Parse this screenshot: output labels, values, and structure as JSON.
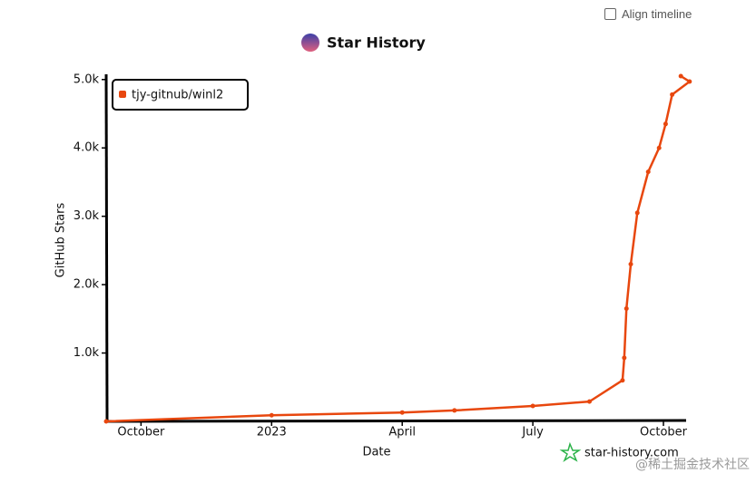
{
  "ui": {
    "align_timeline": "Align timeline"
  },
  "chart_data": {
    "type": "line",
    "title": "Star History",
    "x_label": "Date",
    "y_label": "GitHub Stars",
    "x": [
      -0.8,
      3,
      6,
      7.2,
      9,
      10.3,
      11.06,
      11.1,
      11.15,
      11.25,
      11.4,
      11.65,
      11.9,
      12.05,
      12.2,
      12.6,
      12.4
    ],
    "series": [
      {
        "name": "tjy-gitnub/winl2",
        "color": "#e8470e",
        "values": [
          0,
          90,
          130,
          160,
          225,
          290,
          600,
          930,
          1650,
          2300,
          3050,
          3650,
          4000,
          4350,
          4780,
          4970,
          5050
        ]
      }
    ],
    "xlim": [
      -0.8,
      12.5
    ],
    "ylim": [
      0,
      5050
    ],
    "xticks": [
      {
        "value": 0,
        "label": "October"
      },
      {
        "value": 3,
        "label": "2023"
      },
      {
        "value": 6,
        "label": "April"
      },
      {
        "value": 9,
        "label": "July"
      },
      {
        "value": 12,
        "label": "October"
      }
    ],
    "yticks": [
      {
        "value": 1000,
        "label": "1.0k"
      },
      {
        "value": 2000,
        "label": "2.0k"
      },
      {
        "value": 3000,
        "label": "3.0k"
      },
      {
        "value": 4000,
        "label": "4.0k"
      },
      {
        "value": 5000,
        "label": "5.0k"
      }
    ],
    "legend": "upper left",
    "watermark": "star-history.com"
  },
  "footer": "@稀土掘金技术社区"
}
